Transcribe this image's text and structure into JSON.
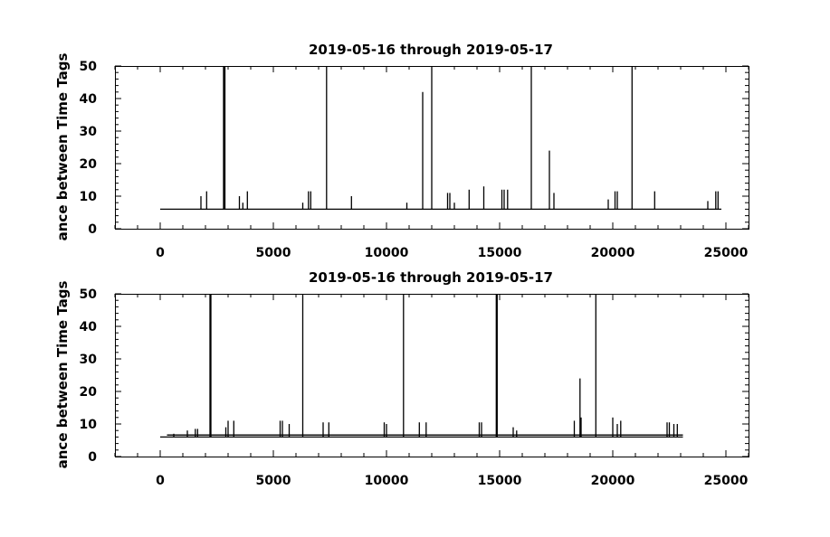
{
  "chart_data": [
    {
      "type": "line",
      "title": "2019-05-16 through 2019-05-17",
      "ylabel": "ance between Time Tags",
      "xlabel": "",
      "xlim": [
        -2000,
        26000
      ],
      "ylim": [
        0,
        50
      ],
      "x_ticks": [
        0,
        5000,
        10000,
        15000,
        20000,
        25000
      ],
      "y_ticks": [
        0,
        10,
        20,
        30,
        40,
        50
      ],
      "x_minor_step": 1000,
      "y_minor_step": 2,
      "baseline": 6,
      "x_end": 24800,
      "dense_band": [],
      "spikes": [
        {
          "x": 1800,
          "y": 10
        },
        {
          "x": 2050,
          "y": 11.5
        },
        {
          "x": 2800,
          "y": 50
        },
        {
          "x": 2830,
          "y": 50
        },
        {
          "x": 2860,
          "y": 50
        },
        {
          "x": 3500,
          "y": 10
        },
        {
          "x": 3650,
          "y": 8
        },
        {
          "x": 3850,
          "y": 11.5
        },
        {
          "x": 6300,
          "y": 8
        },
        {
          "x": 6550,
          "y": 11.5
        },
        {
          "x": 6650,
          "y": 11.5
        },
        {
          "x": 7350,
          "y": 50
        },
        {
          "x": 8450,
          "y": 10
        },
        {
          "x": 10900,
          "y": 8
        },
        {
          "x": 11600,
          "y": 42
        },
        {
          "x": 12000,
          "y": 50
        },
        {
          "x": 12700,
          "y": 11
        },
        {
          "x": 12800,
          "y": 11
        },
        {
          "x": 13000,
          "y": 8
        },
        {
          "x": 13650,
          "y": 12
        },
        {
          "x": 14300,
          "y": 13
        },
        {
          "x": 15100,
          "y": 12
        },
        {
          "x": 15200,
          "y": 12
        },
        {
          "x": 15350,
          "y": 12
        },
        {
          "x": 16400,
          "y": 50
        },
        {
          "x": 17200,
          "y": 24
        },
        {
          "x": 17400,
          "y": 11
        },
        {
          "x": 19800,
          "y": 9
        },
        {
          "x": 20100,
          "y": 11.5
        },
        {
          "x": 20200,
          "y": 11.5
        },
        {
          "x": 20850,
          "y": 50
        },
        {
          "x": 21850,
          "y": 11.5
        },
        {
          "x": 24200,
          "y": 8.5
        },
        {
          "x": 24550,
          "y": 11.5
        },
        {
          "x": 24650,
          "y": 11.5
        }
      ]
    },
    {
      "type": "line",
      "title": "2019-05-16 through 2019-05-17",
      "ylabel": "ance between Time Tags",
      "xlabel": "",
      "xlim": [
        -2000,
        26000
      ],
      "ylim": [
        0,
        50
      ],
      "x_ticks": [
        0,
        5000,
        10000,
        15000,
        20000,
        25000
      ],
      "y_ticks": [
        0,
        10,
        20,
        30,
        40,
        50
      ],
      "x_minor_step": 1000,
      "y_minor_step": 2,
      "baseline": 6,
      "x_end": 23100,
      "dense_band": [
        [
          300,
          23100
        ]
      ],
      "spikes": [
        {
          "x": 600,
          "y": 7
        },
        {
          "x": 1200,
          "y": 8
        },
        {
          "x": 1550,
          "y": 8.5
        },
        {
          "x": 1650,
          "y": 8.5
        },
        {
          "x": 2200,
          "y": 50
        },
        {
          "x": 2220,
          "y": 50
        },
        {
          "x": 2240,
          "y": 50
        },
        {
          "x": 2900,
          "y": 9
        },
        {
          "x": 3000,
          "y": 11
        },
        {
          "x": 3250,
          "y": 11
        },
        {
          "x": 5300,
          "y": 11
        },
        {
          "x": 5400,
          "y": 11
        },
        {
          "x": 5700,
          "y": 10
        },
        {
          "x": 6300,
          "y": 50
        },
        {
          "x": 7200,
          "y": 10.5
        },
        {
          "x": 7450,
          "y": 10.5
        },
        {
          "x": 9900,
          "y": 10.5
        },
        {
          "x": 10000,
          "y": 10
        },
        {
          "x": 10750,
          "y": 50
        },
        {
          "x": 11450,
          "y": 10.5
        },
        {
          "x": 11750,
          "y": 10.5
        },
        {
          "x": 14100,
          "y": 10.5
        },
        {
          "x": 14200,
          "y": 10.5
        },
        {
          "x": 14850,
          "y": 50
        },
        {
          "x": 14870,
          "y": 50
        },
        {
          "x": 14890,
          "y": 50
        },
        {
          "x": 15600,
          "y": 9
        },
        {
          "x": 15750,
          "y": 8
        },
        {
          "x": 18300,
          "y": 11
        },
        {
          "x": 18550,
          "y": 24
        },
        {
          "x": 18600,
          "y": 12
        },
        {
          "x": 19250,
          "y": 50
        },
        {
          "x": 20000,
          "y": 12
        },
        {
          "x": 20200,
          "y": 10
        },
        {
          "x": 20350,
          "y": 11
        },
        {
          "x": 22400,
          "y": 10.5
        },
        {
          "x": 22500,
          "y": 10.5
        },
        {
          "x": 22700,
          "y": 10
        },
        {
          "x": 22850,
          "y": 10
        }
      ]
    }
  ]
}
